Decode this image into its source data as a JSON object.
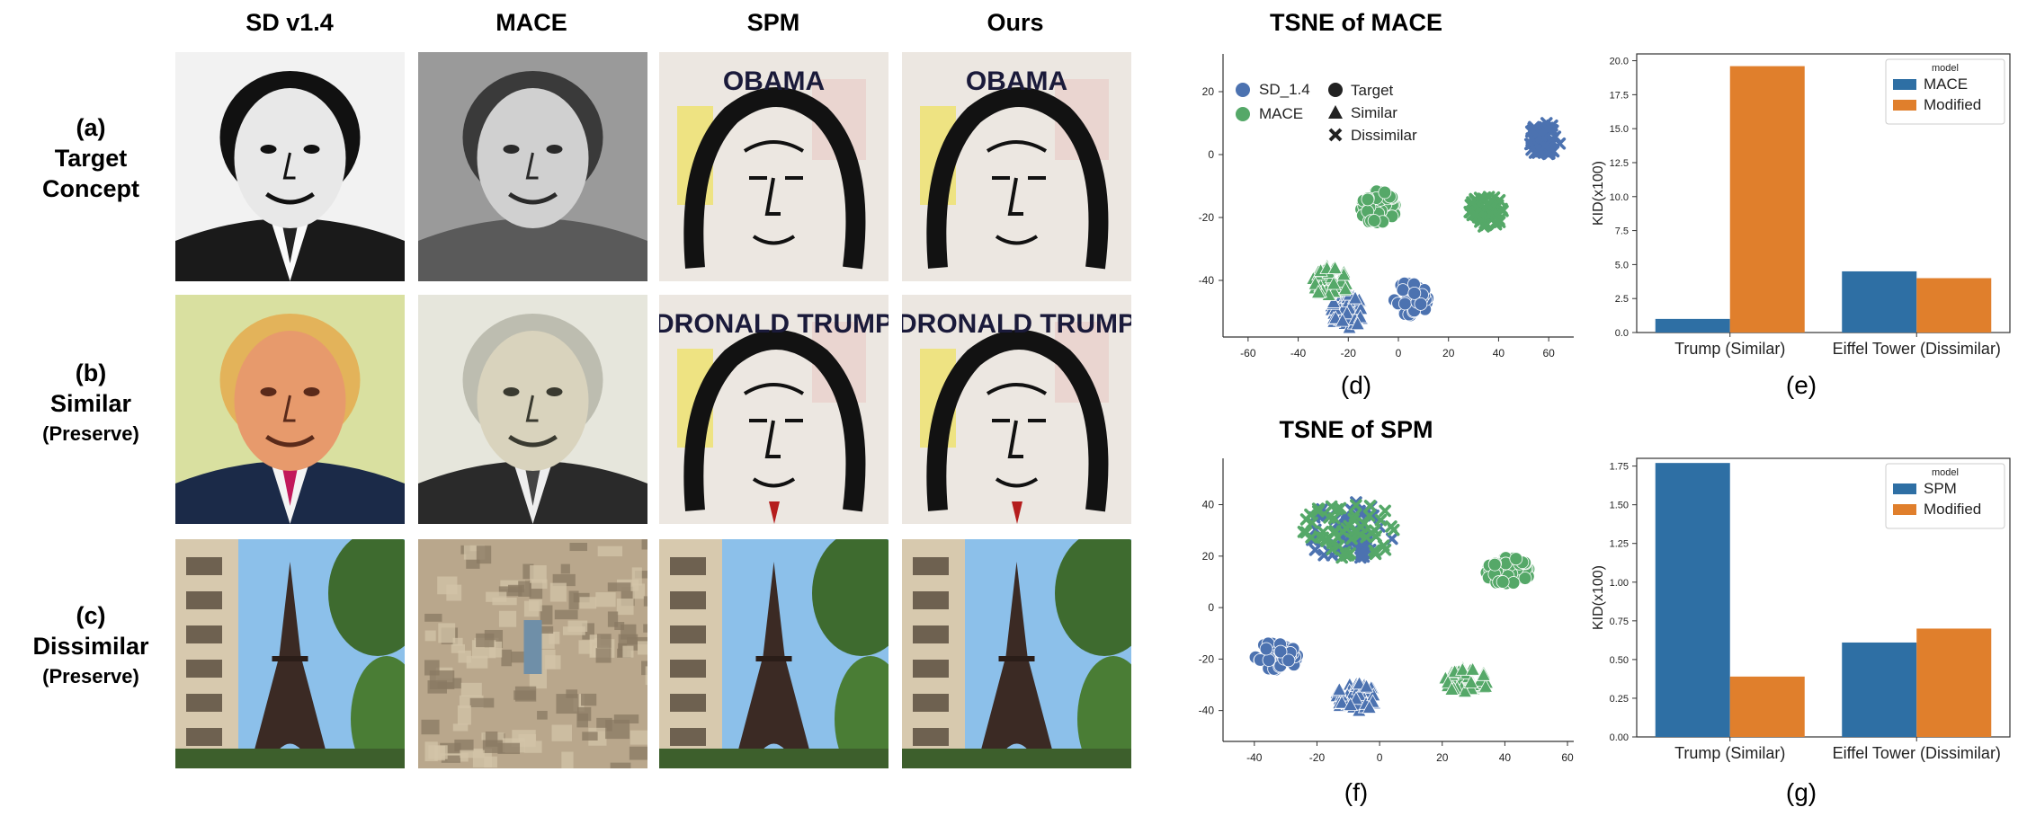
{
  "columns": [
    "SD v1.4",
    "MACE",
    "SPM",
    "Ours"
  ],
  "rows": [
    {
      "id": "(a)",
      "line1": "Target",
      "line2": "Concept",
      "sub": "",
      "subject": "Barack Obama portrait"
    },
    {
      "id": "(b)",
      "line1": "Similar",
      "line2": "",
      "sub": "(Preserve)",
      "subject": "Donald Trump portrait"
    },
    {
      "id": "(c)",
      "line1": "Dissimilar",
      "line2": "",
      "sub": "(Preserve)",
      "subject": "Eiffel Tower street view"
    }
  ],
  "image_captions": {
    "spm_row_a": "OBAMA",
    "spm_row_b": "DRONALD TRUMP"
  },
  "tsne_mace": {
    "title": "TSNE of MACE",
    "panel": "(d)",
    "legend_colors": [
      {
        "label": "SD_1.4",
        "color": "#4c72b0"
      },
      {
        "label": "MACE",
        "color": "#55a868"
      }
    ],
    "legend_markers": [
      {
        "label": "Target",
        "marker": "circle"
      },
      {
        "label": "Similar",
        "marker": "triangle"
      },
      {
        "label": "Dissimilar",
        "marker": "cross"
      }
    ],
    "x_ticks": [
      "-60",
      "-40",
      "-20",
      "0",
      "20",
      "40",
      "60"
    ],
    "y_ticks": [
      "20",
      "0",
      "-20",
      "-40"
    ]
  },
  "tsne_spm": {
    "title": "TSNE of SPM",
    "panel": "(f)",
    "x_ticks": [
      "-40",
      "-20",
      "0",
      "20",
      "40",
      "60"
    ],
    "y_ticks": [
      "40",
      "20",
      "0",
      "-20",
      "-40"
    ]
  },
  "chart_data": [
    {
      "type": "scatter",
      "title": "TSNE of MACE",
      "panel": "(d)",
      "xlim": [
        -70,
        70
      ],
      "ylim": [
        -58,
        32
      ],
      "series": [
        {
          "name": "SD_1.4",
          "marker": "circle",
          "color": "#4c72b0",
          "center": [
            5,
            -46
          ]
        },
        {
          "name": "SD_1.4",
          "marker": "triangle",
          "color": "#4c72b0",
          "center": [
            -20,
            -50
          ]
        },
        {
          "name": "SD_1.4",
          "marker": "cross",
          "color": "#4c72b0",
          "center": [
            58,
            5
          ]
        },
        {
          "name": "MACE",
          "marker": "circle",
          "color": "#55a868",
          "center": [
            -8,
            -17
          ]
        },
        {
          "name": "MACE",
          "marker": "triangle",
          "color": "#55a868",
          "center": [
            -27,
            -40
          ]
        },
        {
          "name": "MACE",
          "marker": "cross",
          "color": "#55a868",
          "center": [
            35,
            -18
          ]
        }
      ]
    },
    {
      "type": "scatter",
      "title": "TSNE of SPM",
      "panel": "(f)",
      "xlim": [
        -50,
        62
      ],
      "ylim": [
        -52,
        58
      ],
      "series": [
        {
          "name": "SD_1.4",
          "marker": "circle",
          "color": "#4c72b0",
          "center": [
            -33,
            -19
          ]
        },
        {
          "name": "SD_1.4",
          "marker": "triangle",
          "color": "#4c72b0",
          "center": [
            -7,
            -35
          ]
        },
        {
          "name": "SD_1.4",
          "marker": "cross",
          "color": "#4c72b0",
          "center": [
            -10,
            30
          ]
        },
        {
          "name": "MACE",
          "marker": "circle",
          "color": "#55a868",
          "center": [
            41,
            14
          ]
        },
        {
          "name": "MACE",
          "marker": "triangle",
          "color": "#55a868",
          "center": [
            28,
            -28
          ]
        },
        {
          "name": "MACE",
          "marker": "cross",
          "color": "#55a868",
          "center": [
            -10,
            30
          ]
        }
      ]
    },
    {
      "type": "bar",
      "panel": "(e)",
      "categories": [
        "Trump (Similar)",
        "Eiffel Tower (Dissimilar)"
      ],
      "legend_title": "model",
      "series": [
        {
          "name": "MACE",
          "color": "#2e6fa4",
          "values": [
            1.0,
            4.5
          ]
        },
        {
          "name": "Modified",
          "color": "#e07f2c",
          "values": [
            19.6,
            4.0
          ]
        }
      ],
      "ylabel": "KID(x100)",
      "ylim": [
        0,
        20.5
      ],
      "y_ticks": [
        "0.0",
        "2.5",
        "5.0",
        "7.5",
        "10.0",
        "12.5",
        "15.0",
        "17.5",
        "20.0"
      ]
    },
    {
      "type": "bar",
      "panel": "(g)",
      "categories": [
        "Trump (Similar)",
        "Eiffel Tower (Dissimilar)"
      ],
      "legend_title": "model",
      "series": [
        {
          "name": "SPM",
          "color": "#2e6fa4",
          "values": [
            1.77,
            0.61
          ]
        },
        {
          "name": "Modified",
          "color": "#e07f2c",
          "values": [
            0.39,
            0.7
          ]
        }
      ],
      "ylabel": "KID(x100)",
      "ylim": [
        0,
        1.8
      ],
      "y_ticks": [
        "0.00",
        "0.25",
        "0.50",
        "0.75",
        "1.00",
        "1.25",
        "1.50",
        "1.75"
      ]
    }
  ]
}
